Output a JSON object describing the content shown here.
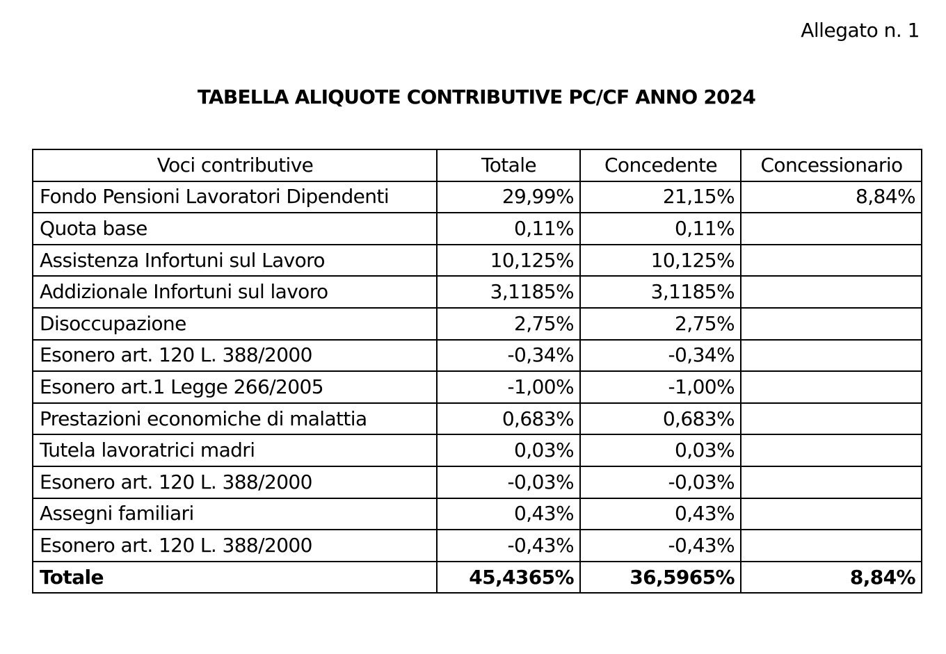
{
  "attachment_label": "Allegato n. 1",
  "title": "TABELLA ALIQUOTE CONTRIBUTIVE PC/CF ANNO 2024",
  "table": {
    "headers": [
      "Voci contributive",
      "Totale",
      "Concedente",
      "Concessionario"
    ],
    "rows": [
      [
        "Fondo Pensioni Lavoratori Dipendenti",
        "29,99%",
        "21,15%",
        "8,84%"
      ],
      [
        "Quota base",
        "0,11%",
        "0,11%",
        ""
      ],
      [
        "Assistenza Infortuni sul Lavoro",
        "10,125%",
        "10,125%",
        ""
      ],
      [
        "Addizionale Infortuni sul lavoro",
        "3,1185%",
        "3,1185%",
        ""
      ],
      [
        "Disoccupazione",
        "2,75%",
        "2,75%",
        ""
      ],
      [
        "Esonero art. 120 L. 388/2000",
        "-0,34%",
        "-0,34%",
        ""
      ],
      [
        "Esonero art.1 Legge 266/2005",
        "-1,00%",
        "-1,00%",
        ""
      ],
      [
        "Prestazioni economiche di malattia",
        "0,683%",
        "0,683%",
        ""
      ],
      [
        "Tutela lavoratrici madri",
        "0,03%",
        "0,03%",
        ""
      ],
      [
        "Esonero art. 120 L. 388/2000",
        "-0,03%",
        "-0,03%",
        ""
      ],
      [
        "Assegni familiari",
        "0,43%",
        "0,43%",
        ""
      ],
      [
        "Esonero art. 120 L. 388/2000",
        "-0,43%",
        "-0,43%",
        ""
      ]
    ],
    "total_row": [
      "Totale",
      "45,4365%",
      "36,5965%",
      "8,84%"
    ]
  }
}
